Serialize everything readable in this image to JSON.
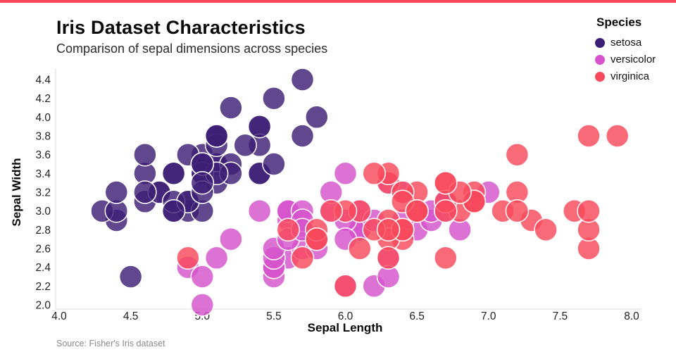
{
  "page": {
    "accent_color": "#f8495c",
    "background": "#ffffff"
  },
  "header": {
    "title": "Iris Dataset Characteristics",
    "subtitle": "Comparison of sepal dimensions across species"
  },
  "legend": {
    "title": "Species"
  },
  "footer": {
    "source": "Source: Fisher's Iris dataset"
  },
  "chart_data": {
    "type": "scatter",
    "title": "Iris Dataset Characteristics",
    "subtitle": "Comparison of sepal dimensions across species",
    "xlabel": "Sepal Length",
    "ylabel": "Sepal Width",
    "xlim": [
      4.0,
      8.0
    ],
    "ylim": [
      2.0,
      4.4
    ],
    "xticks": [
      "4.0",
      "4.5",
      "5.0",
      "5.5",
      "6.0",
      "6.5",
      "7.0",
      "7.5",
      "8.0"
    ],
    "yticks": [
      "2.0",
      "2.2",
      "2.4",
      "2.6",
      "2.8",
      "3.0",
      "3.2",
      "3.4",
      "3.6",
      "3.8",
      "4.0",
      "4.2",
      "4.4"
    ],
    "grid": false,
    "legend_position": "top-right",
    "marker": {
      "radius": 16,
      "opacity": 0.82,
      "stroke": "#ffffff",
      "stroke_width": 1.5
    },
    "series": [
      {
        "name": "setosa",
        "color": "#3d1e75",
        "points": [
          [
            5.1,
            3.5
          ],
          [
            4.9,
            3.0
          ],
          [
            4.7,
            3.2
          ],
          [
            4.6,
            3.1
          ],
          [
            5.0,
            3.6
          ],
          [
            5.4,
            3.9
          ],
          [
            4.6,
            3.4
          ],
          [
            5.0,
            3.4
          ],
          [
            4.4,
            2.9
          ],
          [
            4.9,
            3.1
          ],
          [
            5.4,
            3.7
          ],
          [
            4.8,
            3.4
          ],
          [
            4.8,
            3.0
          ],
          [
            4.3,
            3.0
          ],
          [
            5.8,
            4.0
          ],
          [
            5.7,
            4.4
          ],
          [
            5.4,
            3.9
          ],
          [
            5.1,
            3.5
          ],
          [
            5.7,
            3.8
          ],
          [
            5.1,
            3.8
          ],
          [
            5.4,
            3.4
          ],
          [
            5.1,
            3.7
          ],
          [
            4.6,
            3.6
          ],
          [
            5.1,
            3.3
          ],
          [
            4.8,
            3.4
          ],
          [
            5.0,
            3.0
          ],
          [
            5.0,
            3.4
          ],
          [
            5.2,
            3.5
          ],
          [
            5.2,
            3.4
          ],
          [
            4.7,
            3.2
          ],
          [
            4.8,
            3.1
          ],
          [
            5.4,
            3.4
          ],
          [
            5.2,
            4.1
          ],
          [
            5.5,
            4.2
          ],
          [
            4.9,
            3.1
          ],
          [
            5.0,
            3.2
          ],
          [
            5.5,
            3.5
          ],
          [
            4.9,
            3.6
          ],
          [
            4.4,
            3.0
          ],
          [
            5.1,
            3.4
          ],
          [
            5.0,
            3.5
          ],
          [
            4.5,
            2.3
          ],
          [
            4.4,
            3.2
          ],
          [
            5.0,
            3.5
          ],
          [
            5.1,
            3.8
          ],
          [
            4.8,
            3.0
          ],
          [
            5.1,
            3.8
          ],
          [
            4.6,
            3.2
          ],
          [
            5.3,
            3.7
          ],
          [
            5.0,
            3.3
          ]
        ]
      },
      {
        "name": "versicolor",
        "color": "#d653cc",
        "points": [
          [
            7.0,
            3.2
          ],
          [
            6.4,
            3.2
          ],
          [
            6.9,
            3.1
          ],
          [
            5.5,
            2.3
          ],
          [
            6.5,
            2.8
          ],
          [
            5.7,
            2.8
          ],
          [
            6.3,
            3.3
          ],
          [
            4.9,
            2.4
          ],
          [
            6.6,
            2.9
          ],
          [
            5.2,
            2.7
          ],
          [
            5.0,
            2.0
          ],
          [
            5.9,
            3.0
          ],
          [
            6.0,
            2.2
          ],
          [
            6.1,
            2.9
          ],
          [
            5.6,
            2.9
          ],
          [
            6.7,
            3.1
          ],
          [
            5.6,
            3.0
          ],
          [
            5.8,
            2.7
          ],
          [
            6.2,
            2.2
          ],
          [
            5.6,
            2.5
          ],
          [
            5.9,
            3.2
          ],
          [
            6.1,
            2.8
          ],
          [
            6.3,
            2.5
          ],
          [
            6.1,
            2.8
          ],
          [
            6.4,
            2.9
          ],
          [
            6.6,
            3.0
          ],
          [
            6.8,
            2.8
          ],
          [
            6.7,
            3.0
          ],
          [
            6.0,
            2.9
          ],
          [
            5.7,
            2.6
          ],
          [
            5.5,
            2.4
          ],
          [
            5.5,
            2.4
          ],
          [
            5.8,
            2.7
          ],
          [
            6.0,
            2.7
          ],
          [
            5.4,
            3.0
          ],
          [
            6.0,
            3.4
          ],
          [
            6.7,
            3.1
          ],
          [
            6.3,
            2.3
          ],
          [
            5.6,
            3.0
          ],
          [
            5.5,
            2.5
          ],
          [
            5.5,
            2.6
          ],
          [
            6.1,
            3.0
          ],
          [
            5.8,
            2.6
          ],
          [
            5.0,
            2.3
          ],
          [
            5.6,
            2.7
          ],
          [
            5.7,
            3.0
          ],
          [
            5.7,
            2.9
          ],
          [
            6.2,
            2.9
          ],
          [
            5.1,
            2.5
          ],
          [
            5.7,
            2.8
          ]
        ]
      },
      {
        "name": "virginica",
        "color": "#f8495c",
        "points": [
          [
            6.3,
            3.3
          ],
          [
            5.8,
            2.7
          ],
          [
            7.1,
            3.0
          ],
          [
            6.3,
            2.9
          ],
          [
            6.5,
            3.0
          ],
          [
            7.6,
            3.0
          ],
          [
            4.9,
            2.5
          ],
          [
            7.3,
            2.9
          ],
          [
            6.7,
            2.5
          ],
          [
            7.2,
            3.6
          ],
          [
            6.5,
            3.2
          ],
          [
            6.4,
            2.7
          ],
          [
            6.8,
            3.0
          ],
          [
            5.7,
            2.5
          ],
          [
            5.8,
            2.8
          ],
          [
            6.4,
            3.2
          ],
          [
            6.5,
            3.0
          ],
          [
            7.7,
            3.8
          ],
          [
            7.7,
            2.6
          ],
          [
            6.0,
            2.2
          ],
          [
            6.9,
            3.2
          ],
          [
            5.6,
            2.8
          ],
          [
            7.7,
            2.8
          ],
          [
            6.3,
            2.7
          ],
          [
            6.7,
            3.3
          ],
          [
            7.2,
            3.2
          ],
          [
            6.2,
            2.8
          ],
          [
            6.1,
            3.0
          ],
          [
            6.4,
            2.8
          ],
          [
            7.2,
            3.0
          ],
          [
            7.4,
            2.8
          ],
          [
            7.9,
            3.8
          ],
          [
            6.4,
            2.8
          ],
          [
            6.3,
            2.8
          ],
          [
            6.1,
            2.6
          ],
          [
            7.7,
            3.0
          ],
          [
            6.3,
            3.4
          ],
          [
            6.4,
            3.1
          ],
          [
            6.0,
            3.0
          ],
          [
            6.9,
            3.1
          ],
          [
            6.7,
            3.1
          ],
          [
            6.9,
            3.1
          ],
          [
            5.8,
            2.7
          ],
          [
            6.8,
            3.2
          ],
          [
            6.7,
            3.3
          ],
          [
            6.7,
            3.0
          ],
          [
            6.3,
            2.5
          ],
          [
            6.5,
            3.0
          ],
          [
            6.2,
            3.4
          ],
          [
            5.9,
            3.0
          ]
        ]
      }
    ]
  }
}
